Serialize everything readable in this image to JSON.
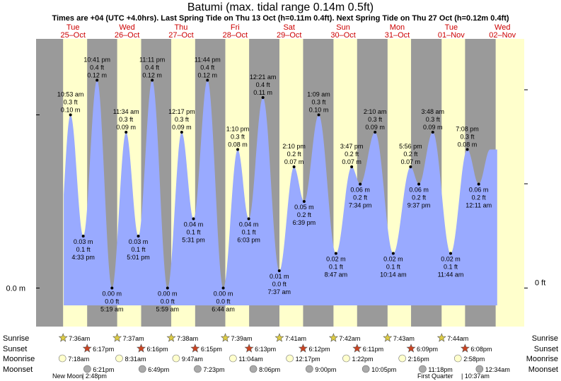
{
  "header": {
    "title": "Batumi (max. tidal range 0.14m 0.5ft)",
    "subtitle": "Times are +04 (UTC +4.0hrs). Last Spring Tide on Thu 13 Oct (h=0.11m 0.4ft). Next Spring Tide on Thu 27 Oct (h=0.12m 0.4ft)"
  },
  "colors": {
    "night": "#9a9a9a",
    "day": "#ffffcc",
    "tide_fill": "#99aaff",
    "weekday": "#cc0000",
    "sun": "#ddcc44",
    "sunset": "#cc4422",
    "moonrise": "#ffffcc",
    "moonset": "#aaaaaa"
  },
  "chart_data": {
    "type": "area",
    "title": "Batumi (max. tidal range 0.14m 0.5ft)",
    "ylabel_left": "0.0 m",
    "ylabel_right": "0 ft",
    "x_unit": "hours since 25-Oct 00:00",
    "ylim_m": [
      -0.03,
      0.165
    ],
    "days": [
      {
        "dow": "Tue",
        "date": "25–Oct"
      },
      {
        "dow": "Wed",
        "date": "26–Oct"
      },
      {
        "dow": "Thu",
        "date": "27–Oct"
      },
      {
        "dow": "Fri",
        "date": "28–Oct"
      },
      {
        "dow": "Sat",
        "date": "29–Oct"
      },
      {
        "dow": "Sun",
        "date": "30–Oct"
      },
      {
        "dow": "Mon",
        "date": "31–Oct"
      },
      {
        "dow": "Tue",
        "date": "01–Nov"
      },
      {
        "dow": "Wed",
        "date": "02–Nov"
      }
    ],
    "tides": [
      {
        "h": 10.883,
        "m": 0.1,
        "time": "10:53 am",
        "m_label": "0.10 m",
        "ft_label": "0.3 ft"
      },
      {
        "h": 16.55,
        "m": 0.03,
        "time": "4:33 pm",
        "m_label": "0.03 m",
        "ft_label": "0.1 ft"
      },
      {
        "h": 22.683,
        "m": 0.12,
        "time": "10:41 pm",
        "m_label": "0.12 m",
        "ft_label": "0.4 ft"
      },
      {
        "h": 29.317,
        "m": 0.0,
        "time": "5:19 am",
        "m_label": "0.00 m",
        "ft_label": "0.0 ft"
      },
      {
        "h": 35.567,
        "m": 0.09,
        "time": "11:34 am",
        "m_label": "0.09 m",
        "ft_label": "0.3 ft"
      },
      {
        "h": 41.017,
        "m": 0.03,
        "time": "5:01 pm",
        "m_label": "0.03 m",
        "ft_label": "0.1 ft"
      },
      {
        "h": 47.183,
        "m": 0.12,
        "time": "11:11 pm",
        "m_label": "0.12 m",
        "ft_label": "0.4 ft"
      },
      {
        "h": 53.983,
        "m": 0.0,
        "time": "5:59 am",
        "m_label": "0.00 m",
        "ft_label": "0.0 ft"
      },
      {
        "h": 60.283,
        "m": 0.09,
        "time": "12:17 pm",
        "m_label": "0.09 m",
        "ft_label": "0.3 ft"
      },
      {
        "h": 65.517,
        "m": 0.04,
        "time": "5:31 pm",
        "m_label": "0.04 m",
        "ft_label": "0.1 ft"
      },
      {
        "h": 71.733,
        "m": 0.12,
        "time": "11:44 pm",
        "m_label": "0.12 m",
        "ft_label": "0.4 ft"
      },
      {
        "h": 78.733,
        "m": 0.0,
        "time": "6:44 am",
        "m_label": "0.00 m",
        "ft_label": "0.0 ft"
      },
      {
        "h": 85.167,
        "m": 0.08,
        "time": "1:10 pm",
        "m_label": "0.08 m",
        "ft_label": "0.3 ft"
      },
      {
        "h": 90.05,
        "m": 0.04,
        "time": "6:03 pm",
        "m_label": "0.04 m",
        "ft_label": "0.1 ft"
      },
      {
        "h": 96.35,
        "m": 0.11,
        "time": "12:21 am",
        "m_label": "0.11 m",
        "ft_label": "0.4 ft"
      },
      {
        "h": 103.617,
        "m": 0.01,
        "time": "7:37 am",
        "m_label": "0.01 m",
        "ft_label": "0.0 ft"
      },
      {
        "h": 110.167,
        "m": 0.07,
        "time": "2:10 pm",
        "m_label": "0.07 m",
        "ft_label": "0.2 ft"
      },
      {
        "h": 114.65,
        "m": 0.05,
        "time": "6:39 pm",
        "m_label": "0.05 m",
        "ft_label": "0.2 ft"
      },
      {
        "h": 121.15,
        "m": 0.1,
        "time": "1:09 am",
        "m_label": "0.10 m",
        "ft_label": "0.3 ft"
      },
      {
        "h": 128.783,
        "m": 0.02,
        "time": "8:47 am",
        "m_label": "0.02 m",
        "ft_label": "0.1 ft"
      },
      {
        "h": 135.783,
        "m": 0.07,
        "time": "3:47 pm",
        "m_label": "0.07 m",
        "ft_label": "0.2 ft"
      },
      {
        "h": 139.567,
        "m": 0.06,
        "time": "7:34 pm",
        "m_label": "0.06 m",
        "ft_label": "0.2 ft"
      },
      {
        "h": 146.167,
        "m": 0.09,
        "time": "2:10 am",
        "m_label": "0.09 m",
        "ft_label": "0.3 ft"
      },
      {
        "h": 154.233,
        "m": 0.02,
        "time": "10:14 am",
        "m_label": "0.02 m",
        "ft_label": "0.1 ft"
      },
      {
        "h": 161.933,
        "m": 0.07,
        "time": "5:56 pm",
        "m_label": "0.07 m",
        "ft_label": "0.2 ft"
      },
      {
        "h": 165.617,
        "m": 0.06,
        "time": "9:37 pm",
        "m_label": "0.06 m",
        "ft_label": "0.2 ft"
      },
      {
        "h": 171.8,
        "m": 0.09,
        "time": "3:48 am",
        "m_label": "0.09 m",
        "ft_label": "0.3 ft"
      },
      {
        "h": 179.733,
        "m": 0.02,
        "time": "11:44 am",
        "m_label": "0.02 m",
        "ft_label": "0.1 ft"
      },
      {
        "h": 187.133,
        "m": 0.08,
        "time": "7:08 pm",
        "m_label": "0.08 m",
        "ft_label": "0.3 ft"
      },
      {
        "h": 192.2,
        "m": 0.06,
        "time": "12:11 am",
        "m_label": "0.06 m",
        "ft_label": "0.2 ft"
      }
    ],
    "sunrise": [
      "7:36am",
      "7:37am",
      "7:38am",
      "7:39am",
      "7:41am",
      "7:42am",
      "7:43am",
      "7:44am"
    ],
    "sunset": [
      "6:17pm",
      "6:16pm",
      "6:15pm",
      "6:13pm",
      "6:12pm",
      "6:11pm",
      "6:09pm",
      "6:08pm"
    ],
    "moonrise": [
      "7:18am",
      "8:31am",
      "9:47am",
      "11:04am",
      "12:17pm",
      "1:22pm",
      "2:16pm",
      "2:58pm"
    ],
    "moonset": [
      "6:21pm",
      "6:49pm",
      "7:23pm",
      "8:06pm",
      "9:00pm",
      "10:05pm",
      "11:18pm",
      "12:34am"
    ],
    "row_labels": {
      "sunrise": "Sunrise",
      "sunset": "Sunset",
      "moonrise": "Moonrise",
      "moonset": "Moonset"
    },
    "phases": [
      {
        "label": "New Moon",
        "time": "| 2:48pm"
      },
      {
        "label": "First Quarter",
        "time": "| 10:37am"
      }
    ]
  }
}
